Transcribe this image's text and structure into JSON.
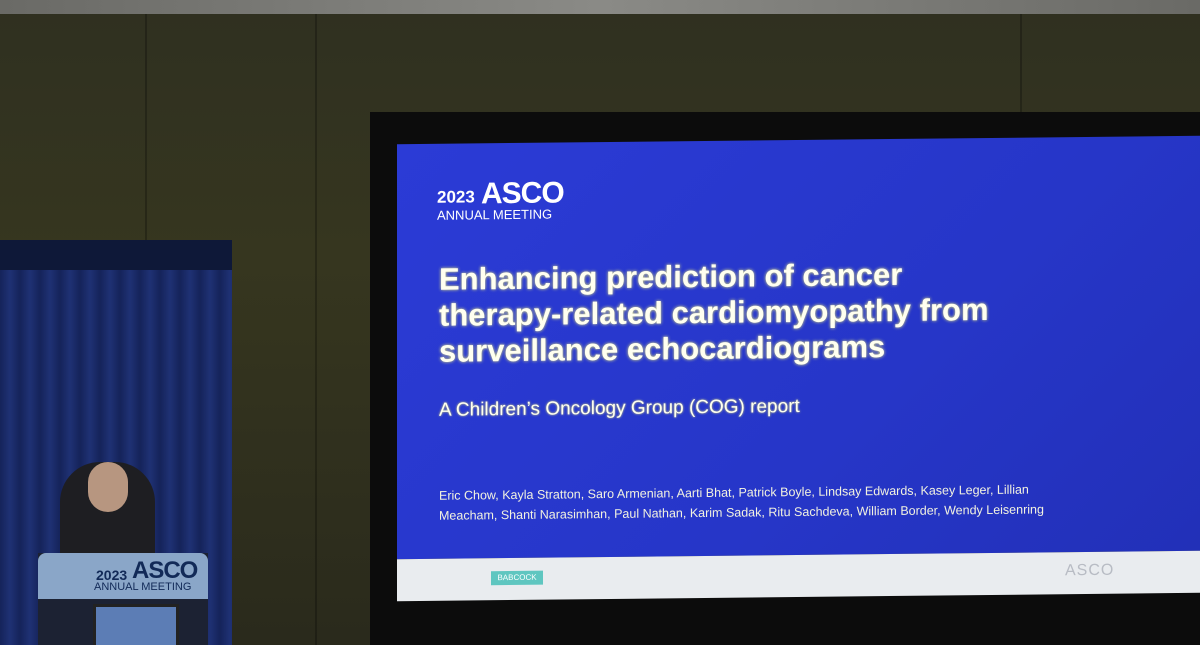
{
  "slide": {
    "logo": {
      "year": "2023",
      "brand": "ASCO",
      "event": "ANNUAL MEETING"
    },
    "title_lines": [
      "Enhancing prediction of cancer",
      "therapy-related cardiomyopathy from",
      "surveillance echocardiograms"
    ],
    "subtitle": "A Children’s Oncology Group (COG) report",
    "author_lines": [
      "Eric Chow, Kayla Stratton, Saro Armenian, Aarti Bhat, Patrick Boyle, Lindsay Edwards, Kasey Leger, Lillian",
      "Meacham, Shanti Narasimhan, Paul Nathan, Karim Sadak, Ritu Sachdeva, William Border, Wendy Leisenring"
    ],
    "footer": {
      "badge": "BABCOCK",
      "logo": "ASCO"
    }
  },
  "podium": {
    "year": "2023",
    "brand": "ASCO",
    "event": "ANNUAL MEETING"
  }
}
